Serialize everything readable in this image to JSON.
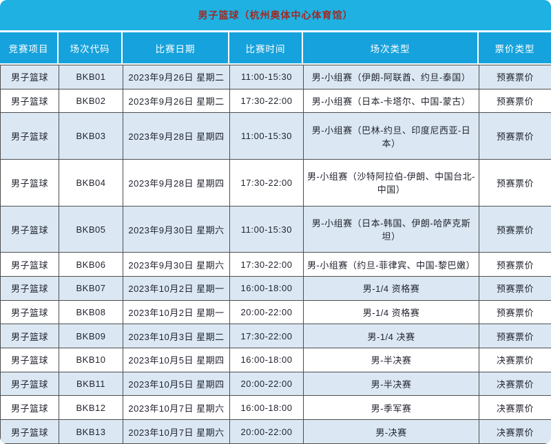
{
  "chart_data": {
    "type": "table",
    "title": "男子篮球（杭州奥体中心体育馆）",
    "columns": [
      "竞赛项目",
      "场次代码",
      "比赛日期",
      "比赛时间",
      "场次类型",
      "票价类型"
    ],
    "rows": [
      [
        "男子篮球",
        "BKB01",
        "2023年9月26日 星期二",
        "11:00-15:30",
        "男-小组赛（伊朗-阿联酋、约旦-泰国）",
        "预赛票价"
      ],
      [
        "男子篮球",
        "BKB02",
        "2023年9月26日 星期二",
        "17:30-22:00",
        "男-小组赛（日本-卡塔尔、中国-蒙古）",
        "预赛票价"
      ],
      [
        "男子篮球",
        "BKB03",
        "2023年9月28日 星期四",
        "11:00-15:30",
        "男-小组赛（巴林-约旦、印度尼西亚-日本）",
        "预赛票价"
      ],
      [
        "男子篮球",
        "BKB04",
        "2023年9月28日 星期四",
        "17:30-22:00",
        "男-小组赛（沙特阿拉伯-伊朗、中国台北-中国）",
        "预赛票价"
      ],
      [
        "男子篮球",
        "BKB05",
        "2023年9月30日 星期六",
        "11:00-15:30",
        "男-小组赛（日本-韩国、伊朗-哈萨克斯坦）",
        "预赛票价"
      ],
      [
        "男子篮球",
        "BKB06",
        "2023年9月30日 星期六",
        "17:30-22:00",
        "男-小组赛（约旦-菲律宾、中国-黎巴嫩）",
        "预赛票价"
      ],
      [
        "男子篮球",
        "BKB07",
        "2023年10月2日 星期一",
        "16:00-18:00",
        "男-1/4 资格赛",
        "预赛票价"
      ],
      [
        "男子篮球",
        "BKB08",
        "2023年10月2日 星期一",
        "20:00-22:00",
        "男-1/4 资格赛",
        "预赛票价"
      ],
      [
        "男子篮球",
        "BKB09",
        "2023年10月3日 星期二",
        "17:30-22:00",
        "男-1/4 决赛",
        "预赛票价"
      ],
      [
        "男子篮球",
        "BKB10",
        "2023年10月5日 星期四",
        "16:00-18:00",
        "男-半决赛",
        "决赛票价"
      ],
      [
        "男子篮球",
        "BKB11",
        "2023年10月5日 星期四",
        "20:00-22:00",
        "男-半决赛",
        "决赛票价"
      ],
      [
        "男子篮球",
        "BKB12",
        "2023年10月7日 星期六",
        "16:00-18:00",
        "男-季军赛",
        "决赛票价"
      ],
      [
        "男子篮球",
        "BKB13",
        "2023年10月7日 星期六",
        "20:00-22:00",
        "男-决赛",
        "决赛票价"
      ]
    ]
  },
  "colors": {
    "title_bar_bg": "#1fb1e2",
    "title_text": "#9e2b25",
    "header_bg": "#16a2dc",
    "header_text": "#ffffff",
    "row_odd_bg": "#dbe8f4",
    "row_even_bg": "#ffffff",
    "cell_text": "#21242e",
    "grid_line": "#4d4d4d"
  }
}
